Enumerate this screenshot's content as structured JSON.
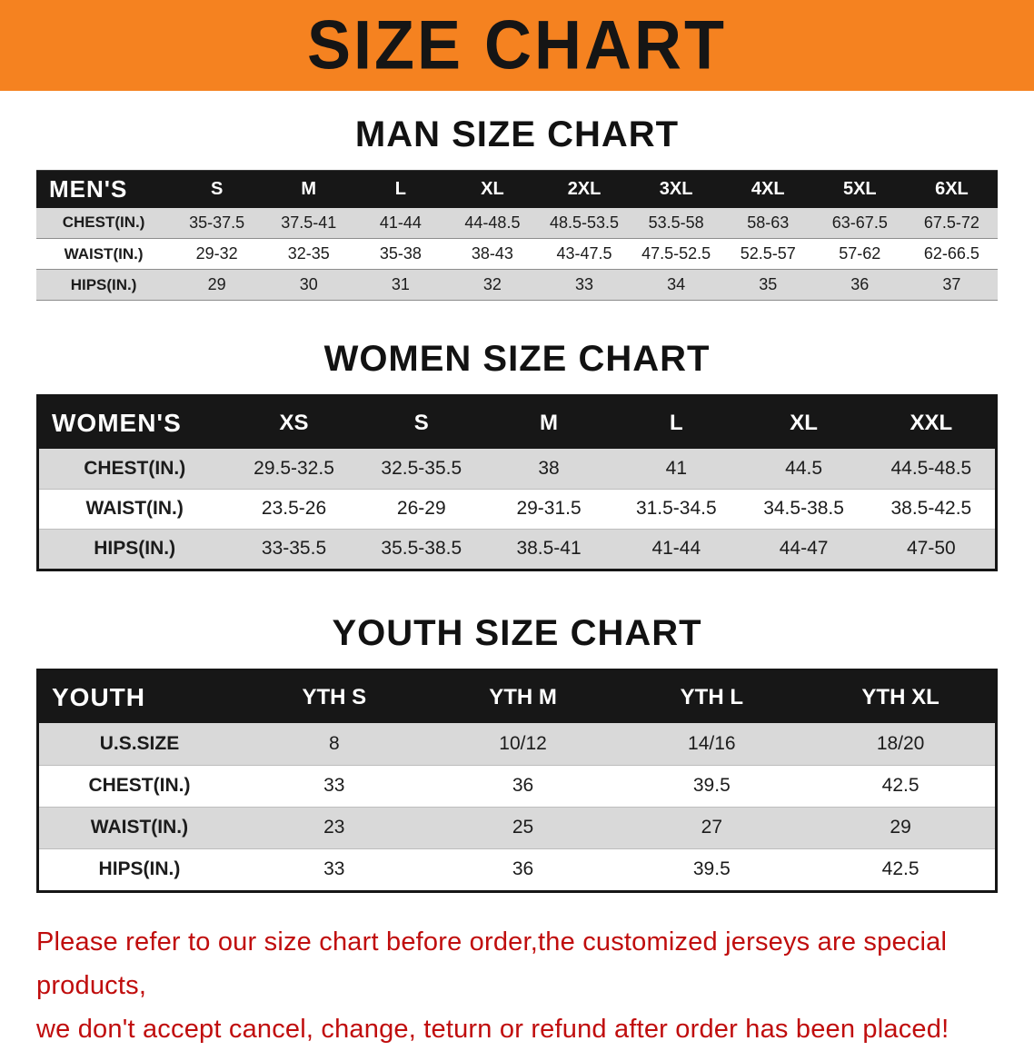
{
  "banner": {
    "title": "SIZE CHART",
    "bg_color": "#f58220",
    "text_color": "#151515"
  },
  "sections": [
    {
      "id": "men",
      "heading": "MAN SIZE CHART",
      "table": {
        "header": [
          "MEN'S",
          "S",
          "M",
          "L",
          "XL",
          "2XL",
          "3XL",
          "4XL",
          "5XL",
          "6XL"
        ],
        "rows": [
          [
            "CHEST(IN.)",
            "35-37.5",
            "37.5-41",
            "41-44",
            "44-48.5",
            "48.5-53.5",
            "53.5-58",
            "58-63",
            "63-67.5",
            "67.5-72"
          ],
          [
            "WAIST(IN.)",
            "29-32",
            "32-35",
            "35-38",
            "38-43",
            "43-47.5",
            "47.5-52.5",
            "52.5-57",
            "57-62",
            "62-66.5"
          ],
          [
            "HIPS(IN.)",
            "29",
            "30",
            "31",
            "32",
            "33",
            "34",
            "35",
            "36",
            "37"
          ]
        ]
      }
    },
    {
      "id": "women",
      "heading": "WOMEN SIZE CHART",
      "table": {
        "header": [
          "WOMEN'S",
          "XS",
          "S",
          "M",
          "L",
          "XL",
          "XXL"
        ],
        "rows": [
          [
            "CHEST(IN.)",
            "29.5-32.5",
            "32.5-35.5",
            "38",
            "41",
            "44.5",
            "44.5-48.5"
          ],
          [
            "WAIST(IN.)",
            "23.5-26",
            "26-29",
            "29-31.5",
            "31.5-34.5",
            "34.5-38.5",
            "38.5-42.5"
          ],
          [
            "HIPS(IN.)",
            "33-35.5",
            "35.5-38.5",
            "38.5-41",
            "41-44",
            "44-47",
            "47-50"
          ]
        ]
      }
    },
    {
      "id": "youth",
      "heading": "YOUTH SIZE CHART",
      "table": {
        "header": [
          "YOUTH",
          "YTH S",
          "YTH M",
          "YTH L",
          "YTH XL"
        ],
        "rows": [
          [
            "U.S.SIZE",
            "8",
            "10/12",
            "14/16",
            "18/20"
          ],
          [
            "CHEST(IN.)",
            "33",
            "36",
            "39.5",
            "42.5"
          ],
          [
            "WAIST(IN.)",
            "23",
            "25",
            "27",
            "29"
          ],
          [
            "HIPS(IN.)",
            "33",
            "36",
            "39.5",
            "42.5"
          ]
        ]
      }
    }
  ],
  "disclaimer": {
    "line1": "Please refer to our size chart before order,the customized jerseys are special products,",
    "line2": "we don't accept cancel, change, teturn or refund after order has been placed!",
    "color": "#c00d0d"
  }
}
